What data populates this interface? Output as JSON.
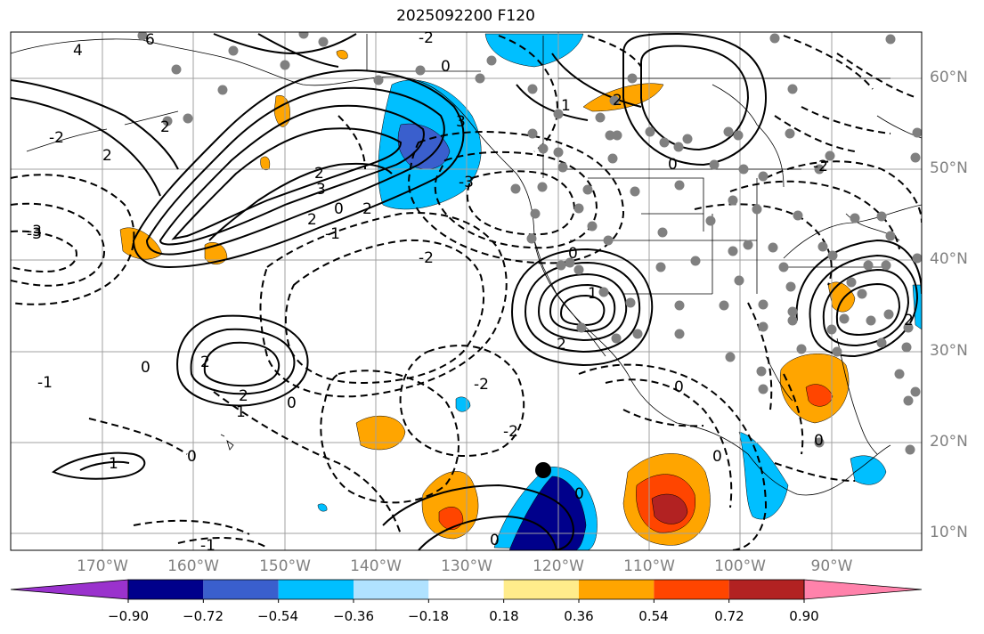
{
  "title": "2025092200 F120",
  "lat_labels": [
    "60°N",
    "50°N",
    "40°N",
    "30°N",
    "20°N",
    "10°N"
  ],
  "lon_labels": [
    "170°W",
    "160°W",
    "150°W",
    "140°W",
    "130°W",
    "120°W",
    "110°W",
    "100°W",
    "90°W"
  ],
  "colorbar": {
    "ticks": [
      "−0.90",
      "−0.72",
      "−0.54",
      "−0.36",
      "−0.18",
      "0.18",
      "0.36",
      "0.54",
      "0.72",
      "0.90"
    ],
    "colors": [
      "#9a32cd",
      "#00008b",
      "#3a5fcd",
      "#00bfff",
      "#b0e2ff",
      "#ffffff",
      "#ffec8b",
      "#ffa500",
      "#ff4500",
      "#b22222",
      "#ff82ab"
    ]
  },
  "contour_labels": [
    "4",
    "6",
    "2",
    "1",
    "2",
    "3",
    "2",
    "0",
    "3",
    "-2",
    "-3",
    "2",
    "-2",
    "2",
    "0",
    "-1",
    "0",
    "-3",
    "0",
    "2",
    "-2",
    "2",
    "1",
    "0",
    "-1",
    "-2",
    "-2",
    "0",
    "2",
    "2",
    "0",
    "1",
    "-1",
    "-3",
    "0",
    "0",
    "0",
    "2",
    "-2",
    "1",
    "0",
    "0"
  ]
}
